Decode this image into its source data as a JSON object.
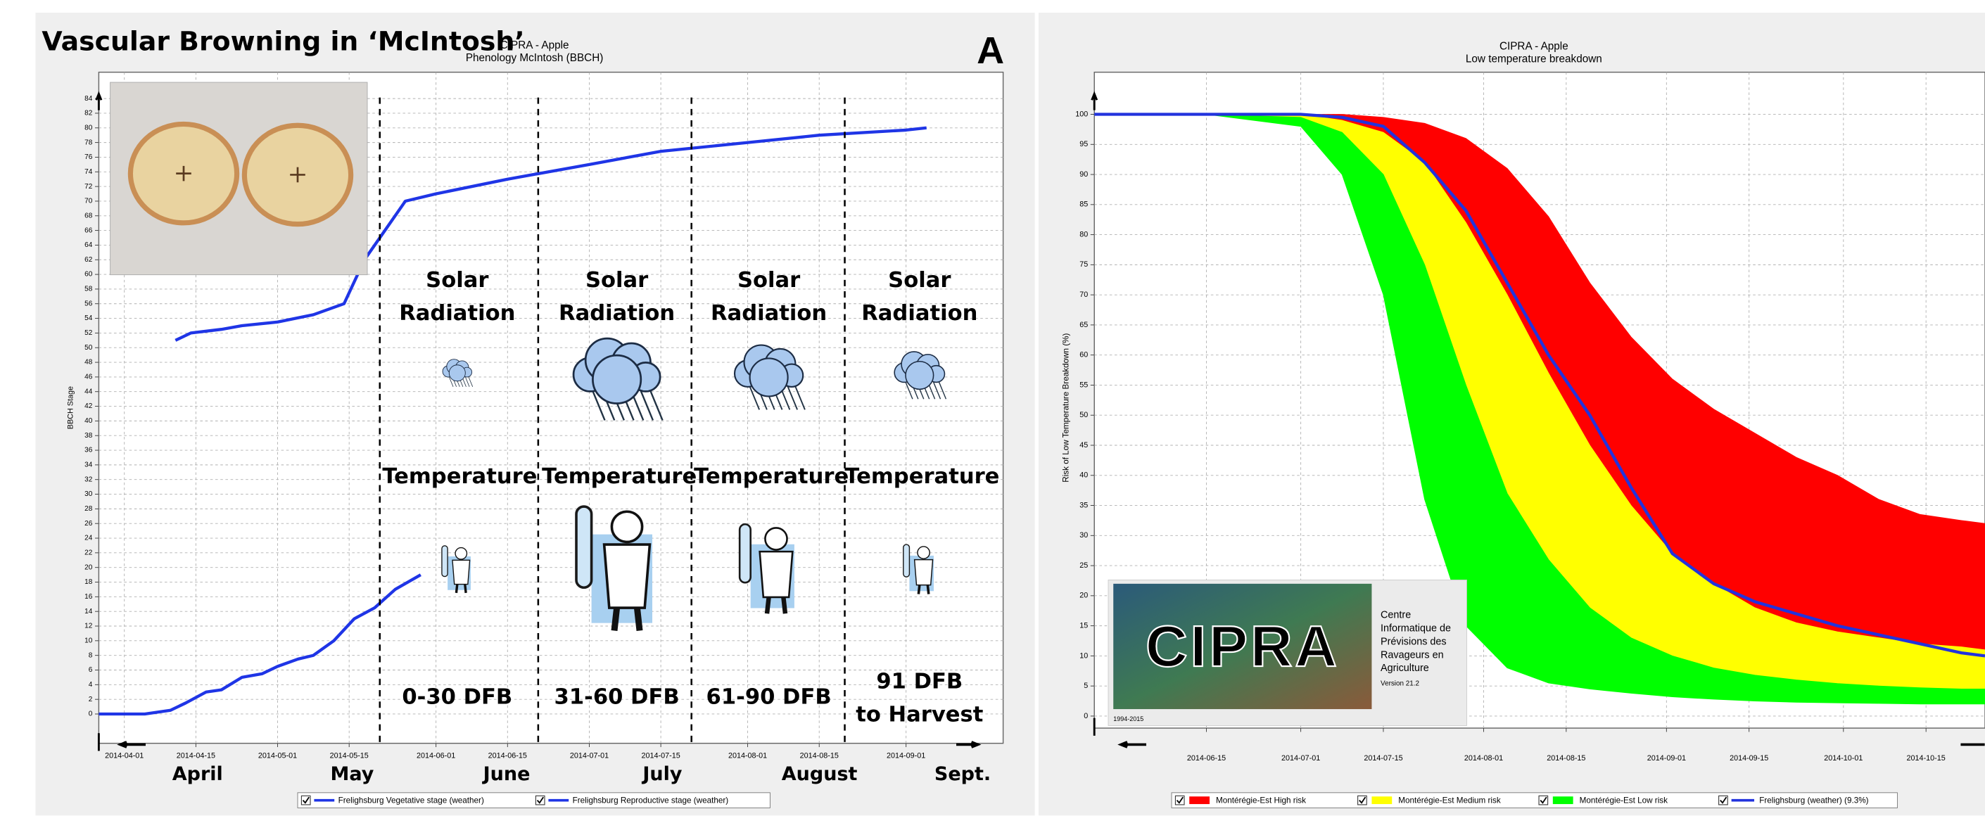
{
  "chart_data": [
    {
      "type": "line",
      "title": "Vascular Browning in ‘McIntosh’",
      "subtitle": [
        "CIPRA - Apple",
        "Phenology McIntosh (BBCH)"
      ],
      "panel_label": "A",
      "y_label": "BBCH Stage",
      "xlim": [
        "2014-03-27",
        "2014-09-20"
      ],
      "ylim": [
        -4,
        87.6
      ],
      "xticks": [
        "2014-04-01",
        "2014-04-15",
        "2014-05-01",
        "2014-05-15",
        "2014-06-01",
        "2014-06-15",
        "2014-07-01",
        "2014-07-15",
        "2014-08-01",
        "2014-08-15",
        "2014-09-01"
      ],
      "yticks": [
        0,
        2,
        4,
        6,
        8,
        10,
        12,
        14,
        16,
        18,
        20,
        22,
        24,
        26,
        28,
        30,
        32,
        34,
        36,
        38,
        40,
        42,
        44,
        46,
        48,
        50,
        52,
        54,
        56,
        58,
        60,
        62,
        64,
        66,
        68,
        70,
        72,
        74,
        76,
        78,
        80,
        82,
        84
      ],
      "grid": true,
      "dividers": [
        "2014-05-21",
        "2014-06-21",
        "2014-07-21",
        "2014-08-20"
      ],
      "months": [
        "April",
        "May",
        "June",
        "July",
        "August",
        "Sept."
      ],
      "periods": [
        {
          "solar": [
            "Solar",
            "Radiation"
          ],
          "temperature": "Temperature",
          "dfb": [
            "0-30 DFB"
          ]
        },
        {
          "solar": [
            "Solar",
            "Radiation"
          ],
          "temperature": "Temperature",
          "dfb": [
            "31-60 DFB"
          ]
        },
        {
          "solar": [
            "Solar",
            "Radiation"
          ],
          "temperature": "Temperature",
          "dfb": [
            "61-90 DFB"
          ]
        },
        {
          "solar": [
            "Solar",
            "Radiation"
          ],
          "temperature": "Temperature",
          "dfb": [
            "91 DFB",
            "to Harvest"
          ]
        }
      ],
      "series": [
        {
          "name": "Frelighsburg Vegetative stage (weather)",
          "color": "#1f35e6",
          "x": [
            "2014-04-11",
            "2014-04-14",
            "2014-04-20",
            "2014-04-24",
            "2014-05-01",
            "2014-05-08",
            "2014-05-14",
            "2014-05-18",
            "2014-05-22",
            "2014-05-26",
            "2014-06-01",
            "2014-06-15",
            "2014-07-01",
            "2014-07-15",
            "2014-08-01",
            "2014-08-15",
            "2014-09-01",
            "2014-09-05"
          ],
          "values": [
            51,
            52,
            52.5,
            53,
            53.5,
            54.5,
            56,
            62,
            66,
            70,
            71,
            73,
            75,
            76.8,
            78,
            79,
            79.7,
            80
          ]
        },
        {
          "name": "Frelighsburg Reproductive stage (weather)",
          "color": "#1f35e6",
          "x": [
            "2014-03-27",
            "2014-04-05",
            "2014-04-10",
            "2014-04-13",
            "2014-04-17",
            "2014-04-20",
            "2014-04-24",
            "2014-04-28",
            "2014-05-01",
            "2014-05-05",
            "2014-05-08",
            "2014-05-12",
            "2014-05-16",
            "2014-05-20",
            "2014-05-24",
            "2014-05-29"
          ],
          "values": [
            0,
            0,
            0.5,
            1.5,
            3,
            3.3,
            5,
            5.5,
            6.5,
            7.5,
            8,
            10,
            13,
            14.5,
            17,
            19
          ]
        }
      ]
    },
    {
      "type": "area",
      "subtitle": [
        "CIPRA - Apple",
        "Low temperature breakdown"
      ],
      "y_label": "Risk of Low Temperature Breakdown (%)",
      "xlim": [
        "2014-05-27",
        "2014-10-25"
      ],
      "ylim": [
        -2,
        107
      ],
      "xticks": [
        "2014-06-15",
        "2014-07-01",
        "2014-07-15",
        "2014-08-01",
        "2014-08-15",
        "2014-09-01",
        "2014-09-15",
        "2014-10-01",
        "2014-10-15"
      ],
      "yticks": [
        0,
        5,
        10,
        15,
        20,
        25,
        30,
        35,
        40,
        45,
        50,
        55,
        60,
        65,
        70,
        75,
        80,
        85,
        90,
        95,
        100
      ],
      "grid": true,
      "x": [
        "2014-05-27",
        "2014-06-15",
        "2014-07-01",
        "2014-07-08",
        "2014-07-15",
        "2014-07-22",
        "2014-07-29",
        "2014-08-05",
        "2014-08-12",
        "2014-08-19",
        "2014-08-26",
        "2014-09-02",
        "2014-09-09",
        "2014-09-16",
        "2014-09-23",
        "2014-09-30",
        "2014-10-07",
        "2014-10-14",
        "2014-10-21",
        "2014-10-25"
      ],
      "series": [
        {
          "name": "Montérégie-Est High risk",
          "color": "#ff0000",
          "low": [
            100,
            100,
            100,
            99,
            97,
            92,
            82,
            70,
            57,
            45,
            35,
            27,
            22,
            18,
            15.5,
            14,
            13,
            12,
            11.5,
            11
          ],
          "high": [
            100,
            100,
            100,
            100,
            99.5,
            98.5,
            96,
            91,
            83,
            72,
            63,
            56,
            51,
            47,
            43,
            40,
            36,
            33.5,
            32.5,
            32
          ]
        },
        {
          "name": "Montérégie-Est Medium risk",
          "color": "#ffff00",
          "low": [
            100,
            100,
            99.5,
            97,
            90,
            75,
            55,
            37,
            26,
            18,
            13,
            10,
            8,
            6.8,
            6,
            5.4,
            5,
            4.7,
            4.5,
            4.5
          ],
          "high": [
            100,
            100,
            100,
            99,
            97,
            92,
            82,
            70,
            57,
            45,
            35,
            27,
            22,
            18,
            15.5,
            14,
            13,
            12,
            11.5,
            11
          ]
        },
        {
          "name": "Montérégie-Est Low risk",
          "color": "#00ff00",
          "low": [
            100,
            100,
            98,
            90,
            70,
            36,
            15,
            8,
            5.5,
            4.5,
            3.8,
            3.2,
            2.8,
            2.5,
            2.3,
            2.2,
            2.1,
            2,
            2,
            2
          ],
          "high": [
            100,
            100,
            99.5,
            97,
            90,
            75,
            55,
            37,
            26,
            18,
            13,
            10,
            8,
            6.8,
            6,
            5.4,
            5,
            4.7,
            4.5,
            4.5
          ]
        },
        {
          "name": "Frelighsburg (weather) (9.3%)",
          "color": "#2233dd",
          "values": [
            100,
            100,
            100,
            99.5,
            98,
            92,
            84,
            72,
            60,
            50,
            38,
            27,
            22,
            19,
            17,
            15,
            13.5,
            12,
            10.5,
            10
          ]
        }
      ],
      "logo": {
        "name": "CIPRA",
        "text": [
          "Centre",
          "Informatique de",
          "Prévisions des",
          "Ravageurs en",
          "Agriculture"
        ],
        "version": "Version 21.2",
        "years": "1994-2015"
      }
    }
  ]
}
